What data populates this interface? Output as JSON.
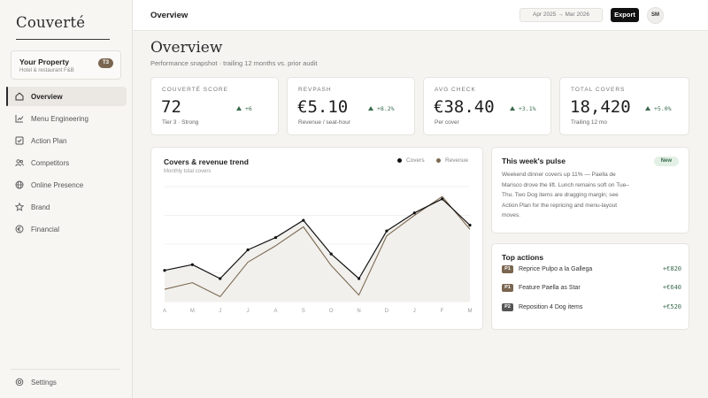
{
  "brand": {
    "name": "Couverté"
  },
  "property": {
    "name": "Your Property",
    "subtitle": "Hotel & restaurant F&B",
    "tier_badge": "T3"
  },
  "nav": {
    "items": [
      {
        "label": "Overview",
        "icon": "home-icon",
        "active": true
      },
      {
        "label": "Menu Engineering",
        "icon": "chart-icon"
      },
      {
        "label": "Action Plan",
        "icon": "checkbox-icon"
      },
      {
        "label": "Competitors",
        "icon": "users-icon"
      },
      {
        "label": "Online Presence",
        "icon": "globe-icon"
      },
      {
        "label": "Brand",
        "icon": "star-icon"
      },
      {
        "label": "Financial",
        "icon": "euro-icon"
      }
    ],
    "settings": {
      "label": "Settings",
      "icon": "gear-icon"
    }
  },
  "topbar": {
    "title": "Overview",
    "date_range": "Apr 2025 → Mar 2026",
    "export_label": "Export",
    "avatar_initials": "SM"
  },
  "page": {
    "title": "Overview",
    "subtitle": "Performance snapshot · trailing 12 months vs. prior audit"
  },
  "kpis": [
    {
      "label": "COUVERTÉ SCORE",
      "value": "72",
      "delta": "+6",
      "note": "Tier 3 · Strong"
    },
    {
      "label": "REVPASH",
      "value": "€5.10",
      "delta": "+8.2%",
      "note": "Revenue / seat-hour"
    },
    {
      "label": "AVG CHECK",
      "value": "€38.40",
      "delta": "+3.1%",
      "note": "Per cover"
    },
    {
      "label": "TOTAL COVERS",
      "value": "18,420",
      "delta": "+5.0%",
      "note": "Trailing 12 mo"
    }
  ],
  "trend": {
    "title": "Covers & revenue trend",
    "subtitle": "Monthly total covers",
    "legend": [
      {
        "name": "Covers",
        "color": "#111111"
      },
      {
        "name": "Revenue",
        "color": "#7d6a52"
      }
    ]
  },
  "chart_data": {
    "type": "line",
    "title": "Covers & revenue trend",
    "subtitle": "Monthly total covers",
    "categories": [
      "A",
      "M",
      "J",
      "J",
      "A",
      "S",
      "O",
      "N",
      "D",
      "J",
      "F",
      "M"
    ],
    "series": [
      {
        "name": "Covers",
        "values": [
          38,
          45,
          28,
          63,
          78,
          99,
          58,
          28,
          86,
          108,
          125,
          93
        ],
        "color": "#111111"
      },
      {
        "name": "Revenue",
        "values": [
          15,
          23,
          6,
          48,
          68,
          91,
          44,
          8,
          80,
          105,
          128,
          88
        ],
        "color": "#7d6a52"
      }
    ],
    "ylim": [
      0,
      140
    ],
    "grid": true,
    "legend_position": "top-right",
    "area_fill": "Covers"
  },
  "pulse": {
    "title": "This week's pulse",
    "badge": "New",
    "body": "Weekend dinner covers up 11% — Paella de Marisco drove the lift. Lunch remains soft on Tue–Thu. Two Dog items are dragging margin; see Action Plan for the repricing and menu-layout moves."
  },
  "actions": {
    "title": "Top actions",
    "items": [
      {
        "priority": "P1",
        "label": "Reprice Pulpo a la Gallega",
        "value": "+€820",
        "color": "#7a6650"
      },
      {
        "priority": "P1",
        "label": "Feature Paella as Star",
        "value": "+€640",
        "color": "#7a6650"
      },
      {
        "priority": "P2",
        "label": "Reposition 4 Dog items",
        "value": "+€520",
        "color": "#555555"
      }
    ]
  }
}
